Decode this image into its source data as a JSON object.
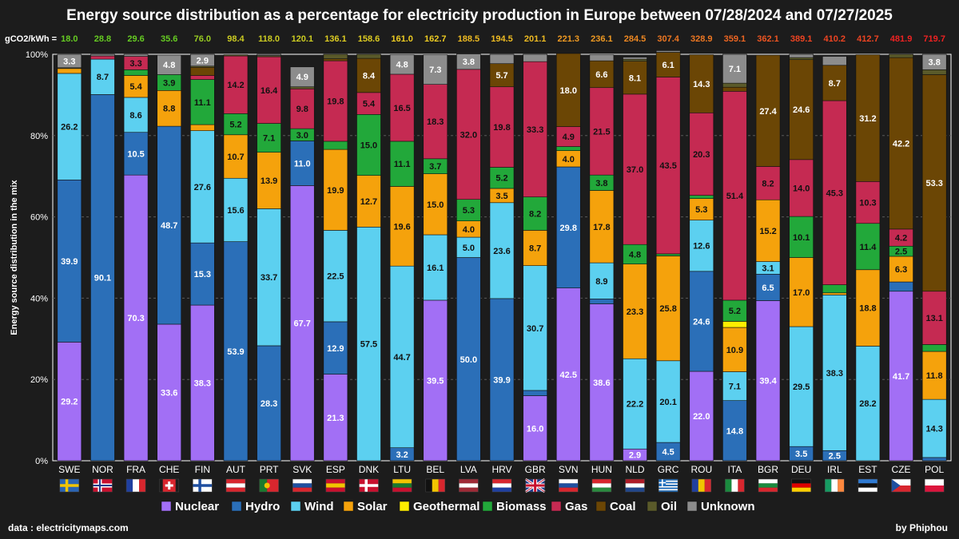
{
  "title": "Energy source distribution as a percentage for electricity production in Europe between 07/28/2024 and 07/27/2025",
  "source": "data : electricitymaps.com",
  "credit": "by Phiphou",
  "chart_data": {
    "type": "bar",
    "stacked": true,
    "ylabel": "Energy source distribution in the mix",
    "ylim": [
      0,
      100
    ],
    "yticks": [
      "0%",
      "20%",
      "40%",
      "60%",
      "80%",
      "100%"
    ],
    "grid": true,
    "legend_position": "bottom",
    "intensity_label": "gCO2/kWh =",
    "categories": [
      "SWE",
      "NOR",
      "FRA",
      "CHE",
      "FIN",
      "AUT",
      "PRT",
      "SVK",
      "ESP",
      "DNK",
      "LTU",
      "BEL",
      "LVA",
      "HRV",
      "GBR",
      "SVN",
      "HUN",
      "NLD",
      "GRC",
      "ROU",
      "ITA",
      "BGR",
      "DEU",
      "IRL",
      "EST",
      "CZE",
      "POL"
    ],
    "intensity": [
      "18.0",
      "28.8",
      "29.6",
      "35.6",
      "76.0",
      "98.4",
      "118.0",
      "120.1",
      "136.1",
      "158.6",
      "161.0",
      "162.7",
      "188.5",
      "194.5",
      "201.1",
      "221.3",
      "236.1",
      "284.5",
      "307.4",
      "328.9",
      "359.1",
      "362.1",
      "389.1",
      "410.2",
      "412.7",
      "481.9",
      "719.7"
    ],
    "intensity_colors": [
      "#66cc22",
      "#66cc22",
      "#66cc22",
      "#66cc22",
      "#99cc22",
      "#cccc22",
      "#cccc22",
      "#cccc22",
      "#ddcc22",
      "#ddcc22",
      "#eecc22",
      "#eecc22",
      "#eebb22",
      "#eebb22",
      "#eebb22",
      "#ee9922",
      "#ee9922",
      "#ee8822",
      "#ee7722",
      "#ee7722",
      "#ee6622",
      "#ee5522",
      "#ee4422",
      "#ee4422",
      "#ee4422",
      "#ee2222",
      "#ee2222"
    ],
    "series": [
      {
        "name": "Nuclear",
        "color": "#a26ff5",
        "values": [
          29.2,
          0,
          70.3,
          33.6,
          38.3,
          0,
          0,
          67.7,
          21.3,
          0,
          0,
          39.5,
          0,
          0,
          16.0,
          42.5,
          38.6,
          2.9,
          0,
          22.0,
          0,
          39.4,
          0,
          0,
          0,
          41.7,
          0
        ]
      },
      {
        "name": "Hydro",
        "color": "#2b6fb8",
        "values": [
          39.9,
          90.1,
          10.5,
          48.7,
          15.3,
          53.9,
          28.3,
          11.0,
          12.9,
          0,
          3.2,
          0,
          50.0,
          39.9,
          1.3,
          29.8,
          1.2,
          0,
          4.5,
          24.6,
          14.8,
          6.5,
          3.5,
          2.5,
          0,
          2.3,
          0.8
        ]
      },
      {
        "name": "Wind",
        "color": "#5cd0f0",
        "values": [
          26.2,
          8.7,
          8.6,
          0,
          27.6,
          15.6,
          33.7,
          0,
          22.5,
          57.5,
          44.7,
          16.1,
          5.0,
          23.6,
          30.7,
          0,
          8.9,
          22.2,
          20.1,
          12.6,
          7.1,
          3.1,
          29.5,
          38.3,
          28.2,
          0,
          14.3
        ]
      },
      {
        "name": "Solar",
        "color": "#f5a20c",
        "values": [
          1.2,
          0,
          5.4,
          8.8,
          1.5,
          10.7,
          13.9,
          0,
          19.9,
          12.7,
          19.6,
          15.0,
          4.0,
          3.5,
          8.7,
          4.0,
          17.8,
          23.3,
          25.8,
          5.3,
          10.9,
          15.2,
          17.0,
          0.5,
          18.8,
          6.3,
          11.8
        ]
      },
      {
        "name": "Geothermal",
        "color": "#ffee00",
        "values": [
          0,
          0,
          0,
          0,
          0,
          0,
          0,
          0,
          0,
          0,
          0,
          0,
          0,
          0,
          0,
          0,
          0,
          0,
          0,
          0,
          1.5,
          0,
          0,
          0,
          0,
          0,
          0
        ]
      },
      {
        "name": "Biomass",
        "color": "#22a83a",
        "values": [
          0,
          0,
          1.4,
          3.9,
          11.1,
          5.2,
          7.1,
          3.0,
          2.0,
          15.0,
          11.1,
          3.7,
          5.3,
          5.2,
          8.2,
          1.0,
          3.8,
          4.8,
          0.5,
          0.8,
          5.2,
          0,
          10.1,
          2.0,
          11.4,
          2.5,
          1.7
        ]
      },
      {
        "name": "Gas",
        "color": "#c52a52",
        "values": [
          0,
          0.8,
          3.3,
          0,
          1.0,
          14.2,
          16.4,
          9.8,
          19.8,
          5.4,
          16.5,
          18.3,
          32.0,
          19.8,
          33.3,
          4.9,
          21.5,
          37.0,
          43.5,
          20.3,
          51.4,
          8.2,
          14.0,
          45.3,
          10.3,
          4.2,
          13.1
        ]
      },
      {
        "name": "Coal",
        "color": "#6b4605",
        "values": [
          0,
          0,
          0,
          0,
          2.0,
          0,
          0,
          0,
          0.5,
          8.4,
          0,
          0,
          0,
          5.7,
          0,
          18.0,
          6.6,
          8.1,
          6.1,
          14.3,
          1.0,
          27.4,
          24.6,
          8.7,
          31.2,
          42.2,
          53.3
        ]
      },
      {
        "name": "Oil",
        "color": "#5a5a2a",
        "values": [
          0.2,
          0,
          0,
          0,
          0.3,
          0.3,
          0.3,
          0.5,
          1.1,
          1.0,
          0,
          0,
          0,
          0,
          0,
          0,
          0,
          0.5,
          0,
          0,
          1.0,
          0,
          0.5,
          0,
          0,
          0.8,
          1.2
        ]
      },
      {
        "name": "Unknown",
        "color": "#8c8c8c",
        "values": [
          3.3,
          0.4,
          0.5,
          4.8,
          2.9,
          0,
          0.3,
          4.9,
          0,
          0,
          4.8,
          7.3,
          3.8,
          2.3,
          1.8,
          0,
          1.5,
          0.5,
          0.4,
          0,
          7.1,
          0,
          0.8,
          2.2,
          0,
          0,
          3.8
        ]
      }
    ],
    "labels": [
      {
        "c": 0,
        "s": 0,
        "t": "29.2"
      },
      {
        "c": 0,
        "s": 1,
        "t": "39.9"
      },
      {
        "c": 0,
        "s": 2,
        "t": "26.2"
      },
      {
        "c": 0,
        "s": 9,
        "t": "3.3"
      },
      {
        "c": 1,
        "s": 1,
        "t": "90.1"
      },
      {
        "c": 1,
        "s": 2,
        "t": "8.7"
      },
      {
        "c": 2,
        "s": 0,
        "t": "70.3"
      },
      {
        "c": 2,
        "s": 1,
        "t": "10.5"
      },
      {
        "c": 2,
        "s": 2,
        "t": "8.6"
      },
      {
        "c": 2,
        "s": 3,
        "t": "5.4"
      },
      {
        "c": 2,
        "s": 6,
        "t": "3.3"
      },
      {
        "c": 3,
        "s": 0,
        "t": "33.6"
      },
      {
        "c": 3,
        "s": 1,
        "t": "48.7"
      },
      {
        "c": 3,
        "s": 3,
        "t": "8.8"
      },
      {
        "c": 3,
        "s": 5,
        "t": "3.9"
      },
      {
        "c": 3,
        "s": 9,
        "t": "4.8"
      },
      {
        "c": 4,
        "s": 0,
        "t": "38.3"
      },
      {
        "c": 4,
        "s": 1,
        "t": "15.3"
      },
      {
        "c": 4,
        "s": 2,
        "t": "27.6"
      },
      {
        "c": 4,
        "s": 5,
        "t": "11.1"
      },
      {
        "c": 4,
        "s": 9,
        "t": "2.9"
      },
      {
        "c": 5,
        "s": 1,
        "t": "53.9"
      },
      {
        "c": 5,
        "s": 2,
        "t": "15.6"
      },
      {
        "c": 5,
        "s": 3,
        "t": "10.7"
      },
      {
        "c": 5,
        "s": 5,
        "t": "5.2"
      },
      {
        "c": 5,
        "s": 6,
        "t": "14.2"
      },
      {
        "c": 6,
        "s": 1,
        "t": "28.3"
      },
      {
        "c": 6,
        "s": 2,
        "t": "33.7"
      },
      {
        "c": 6,
        "s": 3,
        "t": "13.9"
      },
      {
        "c": 6,
        "s": 5,
        "t": "7.1"
      },
      {
        "c": 6,
        "s": 6,
        "t": "16.4"
      },
      {
        "c": 7,
        "s": 0,
        "t": "67.7"
      },
      {
        "c": 7,
        "s": 1,
        "t": "11.0"
      },
      {
        "c": 7,
        "s": 5,
        "t": "3.0"
      },
      {
        "c": 7,
        "s": 6,
        "t": "9.8"
      },
      {
        "c": 7,
        "s": 9,
        "t": "4.9"
      },
      {
        "c": 8,
        "s": 0,
        "t": "21.3"
      },
      {
        "c": 8,
        "s": 1,
        "t": "12.9"
      },
      {
        "c": 8,
        "s": 2,
        "t": "22.5"
      },
      {
        "c": 8,
        "s": 3,
        "t": "19.9"
      },
      {
        "c": 8,
        "s": 6,
        "t": "19.8"
      },
      {
        "c": 9,
        "s": 2,
        "t": "57.5"
      },
      {
        "c": 9,
        "s": 3,
        "t": "12.7"
      },
      {
        "c": 9,
        "s": 5,
        "t": "15.0"
      },
      {
        "c": 9,
        "s": 6,
        "t": "5.4"
      },
      {
        "c": 9,
        "s": 7,
        "t": "8.4"
      },
      {
        "c": 10,
        "s": 1,
        "t": "3.2"
      },
      {
        "c": 10,
        "s": 2,
        "t": "44.7"
      },
      {
        "c": 10,
        "s": 3,
        "t": "19.6"
      },
      {
        "c": 10,
        "s": 5,
        "t": "11.1"
      },
      {
        "c": 10,
        "s": 6,
        "t": "16.5"
      },
      {
        "c": 10,
        "s": 9,
        "t": "4.8"
      },
      {
        "c": 11,
        "s": 0,
        "t": "39.5"
      },
      {
        "c": 11,
        "s": 2,
        "t": "16.1"
      },
      {
        "c": 11,
        "s": 3,
        "t": "15.0"
      },
      {
        "c": 11,
        "s": 5,
        "t": "3.7"
      },
      {
        "c": 11,
        "s": 6,
        "t": "18.3"
      },
      {
        "c": 11,
        "s": 9,
        "t": "7.3"
      },
      {
        "c": 12,
        "s": 1,
        "t": "50.0"
      },
      {
        "c": 12,
        "s": 2,
        "t": "5.0"
      },
      {
        "c": 12,
        "s": 3,
        "t": "4.0"
      },
      {
        "c": 12,
        "s": 5,
        "t": "5.3"
      },
      {
        "c": 12,
        "s": 6,
        "t": "32.0"
      },
      {
        "c": 12,
        "s": 9,
        "t": "3.8"
      },
      {
        "c": 13,
        "s": 1,
        "t": "39.9"
      },
      {
        "c": 13,
        "s": 2,
        "t": "23.6"
      },
      {
        "c": 13,
        "s": 3,
        "t": "3.5"
      },
      {
        "c": 13,
        "s": 5,
        "t": "5.2"
      },
      {
        "c": 13,
        "s": 6,
        "t": "19.8"
      },
      {
        "c": 13,
        "s": 7,
        "t": "5.7"
      },
      {
        "c": 14,
        "s": 0,
        "t": "16.0"
      },
      {
        "c": 14,
        "s": 2,
        "t": "30.7"
      },
      {
        "c": 14,
        "s": 3,
        "t": "8.7"
      },
      {
        "c": 14,
        "s": 5,
        "t": "8.2"
      },
      {
        "c": 14,
        "s": 6,
        "t": "33.3"
      },
      {
        "c": 15,
        "s": 0,
        "t": "42.5"
      },
      {
        "c": 15,
        "s": 1,
        "t": "29.8"
      },
      {
        "c": 15,
        "s": 3,
        "t": "4.0"
      },
      {
        "c": 15,
        "s": 6,
        "t": "4.9"
      },
      {
        "c": 15,
        "s": 7,
        "t": "18.0"
      },
      {
        "c": 16,
        "s": 0,
        "t": "38.6"
      },
      {
        "c": 16,
        "s": 2,
        "t": "8.9"
      },
      {
        "c": 16,
        "s": 3,
        "t": "17.8"
      },
      {
        "c": 16,
        "s": 5,
        "t": "3.8"
      },
      {
        "c": 16,
        "s": 6,
        "t": "21.5"
      },
      {
        "c": 16,
        "s": 7,
        "t": "6.6"
      },
      {
        "c": 17,
        "s": 0,
        "t": "2.9"
      },
      {
        "c": 17,
        "s": 2,
        "t": "22.2"
      },
      {
        "c": 17,
        "s": 3,
        "t": "23.3"
      },
      {
        "c": 17,
        "s": 5,
        "t": "4.8"
      },
      {
        "c": 17,
        "s": 6,
        "t": "37.0"
      },
      {
        "c": 17,
        "s": 7,
        "t": "8.1"
      },
      {
        "c": 18,
        "s": 1,
        "t": "4.5"
      },
      {
        "c": 18,
        "s": 2,
        "t": "20.1"
      },
      {
        "c": 18,
        "s": 3,
        "t": "25.8"
      },
      {
        "c": 18,
        "s": 6,
        "t": "43.5"
      },
      {
        "c": 18,
        "s": 7,
        "t": "6.1"
      },
      {
        "c": 19,
        "s": 0,
        "t": "22.0"
      },
      {
        "c": 19,
        "s": 1,
        "t": "24.6"
      },
      {
        "c": 19,
        "s": 2,
        "t": "12.6"
      },
      {
        "c": 19,
        "s": 3,
        "t": "5.3"
      },
      {
        "c": 19,
        "s": 6,
        "t": "20.3"
      },
      {
        "c": 19,
        "s": 7,
        "t": "14.3"
      },
      {
        "c": 20,
        "s": 1,
        "t": "14.8"
      },
      {
        "c": 20,
        "s": 2,
        "t": "7.1"
      },
      {
        "c": 20,
        "s": 3,
        "t": "10.9"
      },
      {
        "c": 20,
        "s": 5,
        "t": "5.2"
      },
      {
        "c": 20,
        "s": 6,
        "t": "51.4"
      },
      {
        "c": 20,
        "s": 9,
        "t": "7.1"
      },
      {
        "c": 21,
        "s": 0,
        "t": "39.4"
      },
      {
        "c": 21,
        "s": 1,
        "t": "6.5"
      },
      {
        "c": 21,
        "s": 2,
        "t": "3.1"
      },
      {
        "c": 21,
        "s": 3,
        "t": "15.2"
      },
      {
        "c": 21,
        "s": 6,
        "t": "8.2"
      },
      {
        "c": 21,
        "s": 7,
        "t": "27.4"
      },
      {
        "c": 22,
        "s": 1,
        "t": "3.5"
      },
      {
        "c": 22,
        "s": 2,
        "t": "29.5"
      },
      {
        "c": 22,
        "s": 3,
        "t": "17.0"
      },
      {
        "c": 22,
        "s": 5,
        "t": "10.1"
      },
      {
        "c": 22,
        "s": 6,
        "t": "14.0"
      },
      {
        "c": 22,
        "s": 7,
        "t": "24.6"
      },
      {
        "c": 23,
        "s": 1,
        "t": "2.5"
      },
      {
        "c": 23,
        "s": 2,
        "t": "38.3"
      },
      {
        "c": 23,
        "s": 6,
        "t": "45.3"
      },
      {
        "c": 23,
        "s": 7,
        "t": "8.7"
      },
      {
        "c": 24,
        "s": 2,
        "t": "28.2"
      },
      {
        "c": 24,
        "s": 3,
        "t": "18.8"
      },
      {
        "c": 24,
        "s": 5,
        "t": "11.4"
      },
      {
        "c": 24,
        "s": 6,
        "t": "10.3"
      },
      {
        "c": 24,
        "s": 7,
        "t": "31.2"
      },
      {
        "c": 25,
        "s": 0,
        "t": "41.7"
      },
      {
        "c": 25,
        "s": 3,
        "t": "6.3"
      },
      {
        "c": 25,
        "s": 5,
        "t": "2.5"
      },
      {
        "c": 25,
        "s": 6,
        "t": "4.2"
      },
      {
        "c": 25,
        "s": 7,
        "t": "42.2"
      },
      {
        "c": 26,
        "s": 2,
        "t": "14.3"
      },
      {
        "c": 26,
        "s": 3,
        "t": "11.8"
      },
      {
        "c": 26,
        "s": 6,
        "t": "13.1"
      },
      {
        "c": 26,
        "s": 7,
        "t": "53.3"
      },
      {
        "c": 26,
        "s": 9,
        "t": "3.8"
      }
    ],
    "flags": [
      {
        "kind": "nordic",
        "c1": "#2a64b4",
        "c2": "#f2c400"
      },
      {
        "kind": "nordic2",
        "c1": "#c8102e",
        "c2": "#ffffff",
        "c3": "#1f3a8a"
      },
      {
        "kind": "vtri",
        "c1": "#1f3fa0",
        "c2": "#ffffff",
        "c3": "#d8262e"
      },
      {
        "kind": "swiss",
        "c1": "#d8262e",
        "c2": "#ffffff"
      },
      {
        "kind": "nordic",
        "c1": "#ffffff",
        "c2": "#1f4fa0"
      },
      {
        "kind": "htri",
        "c1": "#d8262e",
        "c2": "#ffffff",
        "c3": "#d8262e"
      },
      {
        "kind": "vtri2",
        "c1": "#1a7a2e",
        "c2": "#d8262e",
        "c3": "#d8262e"
      },
      {
        "kind": "htri",
        "c1": "#ffffff",
        "c2": "#1f4fa0",
        "c3": "#d8262e"
      },
      {
        "kind": "htri",
        "c1": "#c8102e",
        "c2": "#f2c400",
        "c3": "#c8102e"
      },
      {
        "kind": "nordic",
        "c1": "#c8102e",
        "c2": "#ffffff"
      },
      {
        "kind": "htri",
        "c1": "#f2c400",
        "c2": "#1a7a2e",
        "c3": "#c8102e"
      },
      {
        "kind": "vtri",
        "c1": "#111111",
        "c2": "#f2c400",
        "c3": "#d8262e"
      },
      {
        "kind": "htri",
        "c1": "#9e2a36",
        "c2": "#ffffff",
        "c3": "#9e2a36"
      },
      {
        "kind": "htri",
        "c1": "#d8262e",
        "c2": "#ffffff",
        "c3": "#1f3fa0"
      },
      {
        "kind": "union",
        "c1": "#1f3a8a",
        "c2": "#ffffff",
        "c3": "#c8102e"
      },
      {
        "kind": "htri",
        "c1": "#ffffff",
        "c2": "#1f4fa0",
        "c3": "#d8262e"
      },
      {
        "kind": "htri",
        "c1": "#d8262e",
        "c2": "#ffffff",
        "c3": "#2a8a3e"
      },
      {
        "kind": "htri",
        "c1": "#ae1c28",
        "c2": "#ffffff",
        "c3": "#21468b"
      },
      {
        "kind": "stripes",
        "c1": "#1f6fc0",
        "c2": "#ffffff"
      },
      {
        "kind": "vtri",
        "c1": "#1f3fa0",
        "c2": "#f2c400",
        "c3": "#d8262e"
      },
      {
        "kind": "vtri",
        "c1": "#1a8a3e",
        "c2": "#ffffff",
        "c3": "#d8262e"
      },
      {
        "kind": "htri",
        "c1": "#ffffff",
        "c2": "#1a8a3e",
        "c3": "#d8262e"
      },
      {
        "kind": "htri",
        "c1": "#111111",
        "c2": "#dd0000",
        "c3": "#ffce00"
      },
      {
        "kind": "vtri",
        "c1": "#169b62",
        "c2": "#ffffff",
        "c3": "#ff883e"
      },
      {
        "kind": "htri",
        "c1": "#2f7ad1",
        "c2": "#111111",
        "c3": "#ffffff"
      },
      {
        "kind": "czech",
        "c1": "#ffffff",
        "c2": "#d8262e",
        "c3": "#1f4fa0"
      },
      {
        "kind": "hbi",
        "c1": "#ffffff",
        "c2": "#dc143c"
      }
    ]
  }
}
